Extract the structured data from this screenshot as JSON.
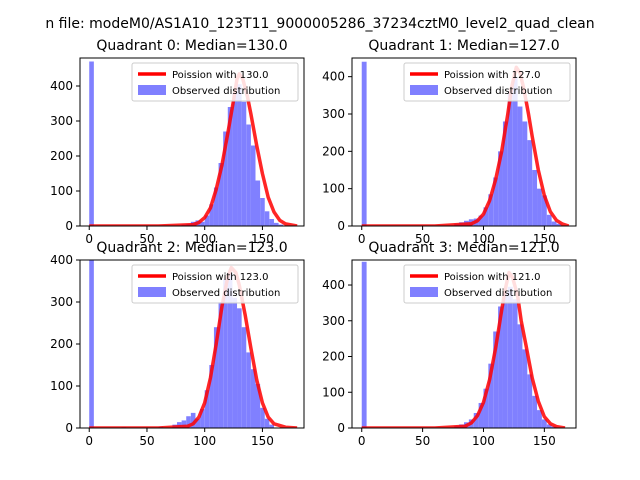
{
  "figure": {
    "suptitle": "n file: modeM0/AS1A10_123T11_9000005286_37234cztM0_level2_quad_clean"
  },
  "colors": {
    "poisson_line": "#ff0000",
    "histogram": "#8080ff",
    "axes": "#000000"
  },
  "chart_data": [
    {
      "type": "bar",
      "title": "Quadrant 0: Median=130.0",
      "xlim": [
        -8,
        186
      ],
      "ylim": [
        0,
        480
      ],
      "xticks": [
        0,
        50,
        100,
        150
      ],
      "yticks": [
        0,
        100,
        200,
        300,
        400
      ],
      "legend": {
        "placement": "top-right",
        "entries": [
          "Poission with 130.0",
          "Observed distribution"
        ]
      },
      "poisson_mean": 130.0,
      "poisson_curve": {
        "name": "Poission with 130.0",
        "x": [
          0,
          60,
          90,
          95,
          100,
          105,
          110,
          115,
          120,
          125,
          128,
          130,
          133,
          137,
          140,
          145,
          150,
          155,
          160,
          165,
          170,
          180
        ],
        "y": [
          0,
          0,
          4,
          10,
          24,
          52,
          105,
          175,
          265,
          360,
          420,
          435,
          420,
          370,
          320,
          230,
          150,
          82,
          40,
          16,
          6,
          0
        ]
      },
      "histogram": {
        "name": "Observed distribution",
        "bin_width": 4,
        "bins": [
          {
            "x": 0,
            "h": 470
          },
          {
            "x": 80,
            "h": 4
          },
          {
            "x": 84,
            "h": 6
          },
          {
            "x": 88,
            "h": 12
          },
          {
            "x": 92,
            "h": 16
          },
          {
            "x": 96,
            "h": 12
          },
          {
            "x": 100,
            "h": 30
          },
          {
            "x": 104,
            "h": 62
          },
          {
            "x": 108,
            "h": 110
          },
          {
            "x": 112,
            "h": 180
          },
          {
            "x": 116,
            "h": 270
          },
          {
            "x": 120,
            "h": 340
          },
          {
            "x": 124,
            "h": 380
          },
          {
            "x": 128,
            "h": 405
          },
          {
            "x": 132,
            "h": 355
          },
          {
            "x": 136,
            "h": 290
          },
          {
            "x": 140,
            "h": 230
          },
          {
            "x": 144,
            "h": 130
          },
          {
            "x": 148,
            "h": 80
          },
          {
            "x": 152,
            "h": 42
          },
          {
            "x": 156,
            "h": 20
          },
          {
            "x": 160,
            "h": 9
          },
          {
            "x": 164,
            "h": 4
          }
        ]
      }
    },
    {
      "type": "bar",
      "title": "Quadrant 1: Median=127.0",
      "xlim": [
        -8,
        176
      ],
      "ylim": [
        0,
        450
      ],
      "xticks": [
        0,
        50,
        100,
        150
      ],
      "yticks": [
        0,
        100,
        200,
        300,
        400
      ],
      "legend": {
        "placement": "top-right",
        "entries": [
          "Poission with 127.0",
          "Observed distribution"
        ]
      },
      "poisson_mean": 127.0,
      "poisson_curve": {
        "name": "Poission with 127.0",
        "x": [
          0,
          60,
          90,
          95,
          100,
          105,
          110,
          115,
          120,
          123,
          127,
          130,
          133,
          137,
          140,
          145,
          150,
          155,
          160,
          165,
          170
        ],
        "y": [
          0,
          0,
          6,
          14,
          32,
          68,
          125,
          200,
          300,
          370,
          425,
          410,
          370,
          300,
          240,
          150,
          82,
          38,
          15,
          5,
          0
        ]
      },
      "histogram": {
        "name": "Observed distribution",
        "bin_width": 4,
        "bins": [
          {
            "x": 0,
            "h": 440
          },
          {
            "x": 76,
            "h": 6
          },
          {
            "x": 80,
            "h": 10
          },
          {
            "x": 84,
            "h": 14
          },
          {
            "x": 88,
            "h": 18
          },
          {
            "x": 92,
            "h": 20
          },
          {
            "x": 96,
            "h": 28
          },
          {
            "x": 100,
            "h": 50
          },
          {
            "x": 104,
            "h": 85
          },
          {
            "x": 108,
            "h": 130
          },
          {
            "x": 112,
            "h": 200
          },
          {
            "x": 116,
            "h": 280
          },
          {
            "x": 120,
            "h": 360
          },
          {
            "x": 124,
            "h": 400
          },
          {
            "x": 128,
            "h": 320
          },
          {
            "x": 132,
            "h": 280
          },
          {
            "x": 136,
            "h": 230
          },
          {
            "x": 140,
            "h": 150
          },
          {
            "x": 144,
            "h": 100
          },
          {
            "x": 148,
            "h": 82
          },
          {
            "x": 152,
            "h": 30
          },
          {
            "x": 156,
            "h": 12
          },
          {
            "x": 160,
            "h": 6
          }
        ]
      }
    },
    {
      "type": "bar",
      "title": "Quadrant 2: Median=123.0",
      "xlim": [
        -8,
        186
      ],
      "ylim": [
        0,
        400
      ],
      "xticks": [
        0,
        50,
        100,
        150
      ],
      "yticks": [
        0,
        100,
        200,
        300,
        400
      ],
      "legend": {
        "placement": "top-right",
        "entries": [
          "Poission with 123.0",
          "Observed distribution"
        ]
      },
      "poisson_mean": 123.0,
      "poisson_curve": {
        "name": "Poission with 123.0",
        "x": [
          0,
          60,
          85,
          90,
          95,
          100,
          105,
          110,
          115,
          120,
          123,
          127,
          130,
          135,
          140,
          145,
          150,
          155,
          160,
          170,
          180
        ],
        "y": [
          0,
          0,
          4,
          10,
          26,
          60,
          120,
          200,
          290,
          360,
          382,
          370,
          340,
          270,
          190,
          115,
          60,
          26,
          10,
          2,
          0
        ]
      },
      "histogram": {
        "name": "Observed distribution",
        "bin_width": 4,
        "bins": [
          {
            "x": 0,
            "h": 400
          },
          {
            "x": 28,
            "h": 2
          },
          {
            "x": 60,
            "h": 3
          },
          {
            "x": 72,
            "h": 8
          },
          {
            "x": 76,
            "h": 14
          },
          {
            "x": 80,
            "h": 18
          },
          {
            "x": 84,
            "h": 28
          },
          {
            "x": 88,
            "h": 36
          },
          {
            "x": 92,
            "h": 22
          },
          {
            "x": 96,
            "h": 45
          },
          {
            "x": 100,
            "h": 90
          },
          {
            "x": 104,
            "h": 150
          },
          {
            "x": 108,
            "h": 240
          },
          {
            "x": 112,
            "h": 300
          },
          {
            "x": 116,
            "h": 355
          },
          {
            "x": 120,
            "h": 370
          },
          {
            "x": 124,
            "h": 310
          },
          {
            "x": 128,
            "h": 285
          },
          {
            "x": 132,
            "h": 240
          },
          {
            "x": 136,
            "h": 180
          },
          {
            "x": 140,
            "h": 140
          },
          {
            "x": 144,
            "h": 105
          },
          {
            "x": 148,
            "h": 48
          },
          {
            "x": 152,
            "h": 22
          },
          {
            "x": 156,
            "h": 8
          }
        ]
      }
    },
    {
      "type": "bar",
      "title": "Quadrant 3: Median=121.0",
      "xlim": [
        -8,
        176
      ],
      "ylim": [
        0,
        470
      ],
      "xticks": [
        0,
        50,
        100,
        150
      ],
      "yticks": [
        0,
        100,
        200,
        300,
        400
      ],
      "legend": {
        "placement": "top-right",
        "entries": [
          "Poission with 121.0",
          "Observed distribution"
        ]
      },
      "poisson_mean": 121.0,
      "poisson_curve": {
        "name": "Poission with 121.0",
        "x": [
          0,
          60,
          85,
          90,
          95,
          100,
          105,
          110,
          115,
          118,
          121,
          124,
          128,
          131,
          135,
          140,
          145,
          150,
          155,
          160,
          167
        ],
        "y": [
          0,
          0,
          5,
          14,
          34,
          72,
          135,
          225,
          330,
          390,
          435,
          420,
          370,
          300,
          230,
          140,
          75,
          32,
          12,
          4,
          0
        ]
      },
      "histogram": {
        "name": "Observed distribution",
        "bin_width": 4,
        "bins": [
          {
            "x": 0,
            "h": 465
          },
          {
            "x": 76,
            "h": 6
          },
          {
            "x": 80,
            "h": 10
          },
          {
            "x": 84,
            "h": 16
          },
          {
            "x": 88,
            "h": 24
          },
          {
            "x": 92,
            "h": 42
          },
          {
            "x": 96,
            "h": 70
          },
          {
            "x": 100,
            "h": 110
          },
          {
            "x": 104,
            "h": 180
          },
          {
            "x": 108,
            "h": 270
          },
          {
            "x": 112,
            "h": 340
          },
          {
            "x": 116,
            "h": 380
          },
          {
            "x": 120,
            "h": 395
          },
          {
            "x": 124,
            "h": 360
          },
          {
            "x": 128,
            "h": 290
          },
          {
            "x": 132,
            "h": 220
          },
          {
            "x": 136,
            "h": 150
          },
          {
            "x": 140,
            "h": 90
          },
          {
            "x": 144,
            "h": 50
          },
          {
            "x": 148,
            "h": 24
          },
          {
            "x": 152,
            "h": 10
          },
          {
            "x": 156,
            "h": 4
          }
        ]
      }
    }
  ]
}
